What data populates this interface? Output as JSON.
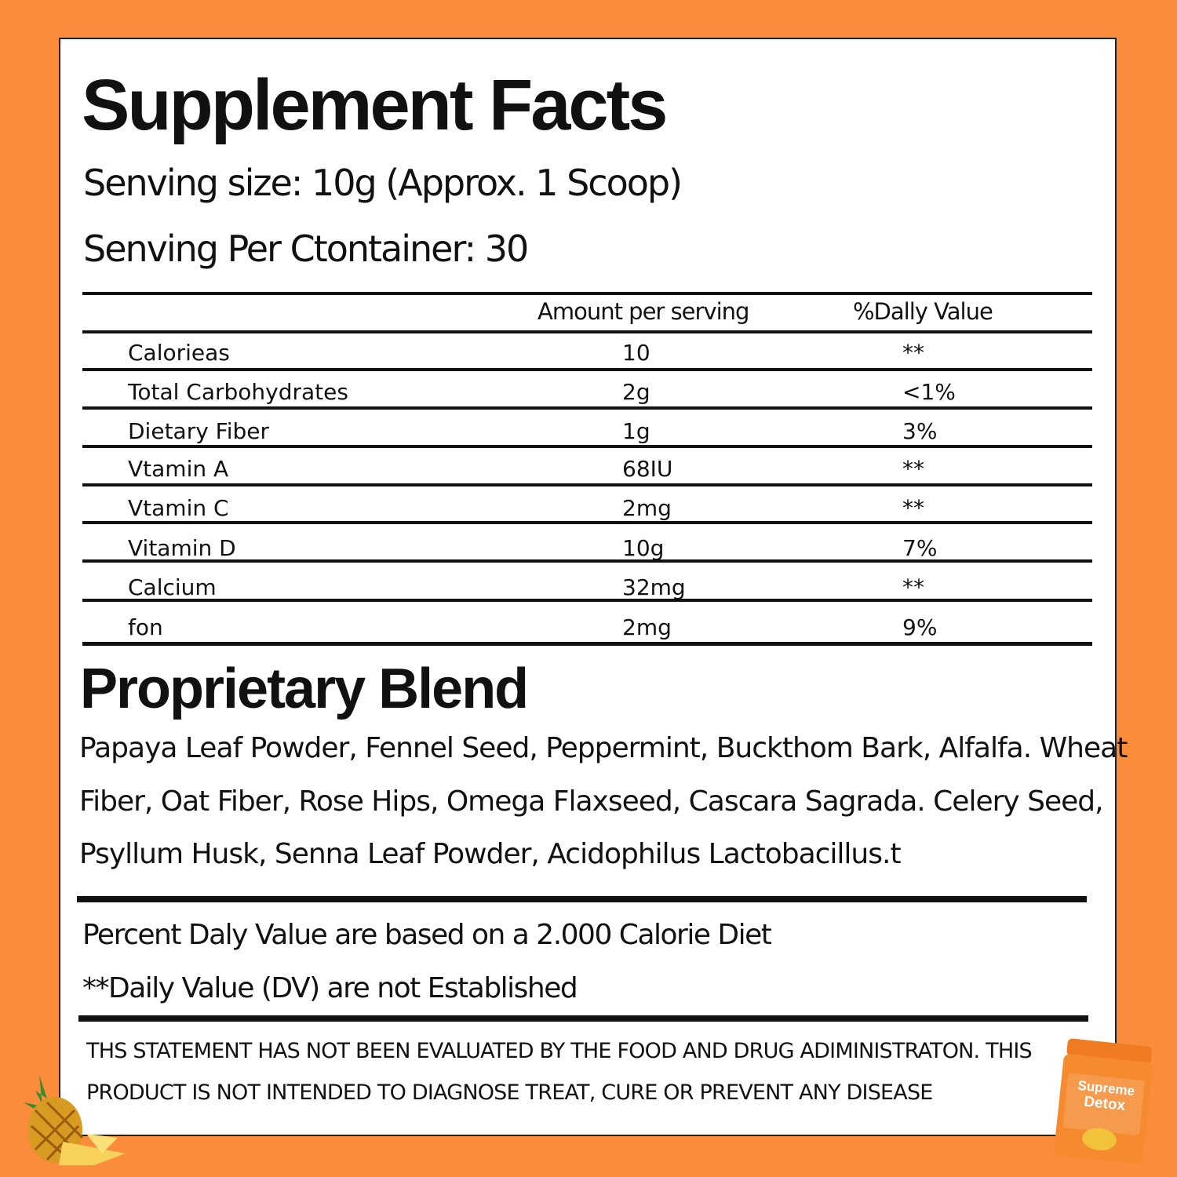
{
  "header": {
    "title": "Supplement Facts",
    "serving_size": "Senving size: 10g (Approx. 1 Scoop)",
    "servings_per_container": "Senving Per Ctontainer: 30"
  },
  "table": {
    "columns": [
      "Amount per serving",
      "%Dally Value"
    ],
    "rows": [
      [
        "Calorieas",
        "10",
        "**"
      ],
      [
        "Total Carbohydrates",
        "2g",
        "<1%"
      ],
      [
        "Dietary Fiber",
        "1g",
        "3%"
      ],
      [
        "Vtamin A",
        "68IU",
        "**"
      ],
      [
        "Vtamin C",
        "2mg",
        "**"
      ],
      [
        "Vitamin D",
        "10g",
        "7%"
      ],
      [
        "Calcium",
        "32mg",
        "**"
      ],
      [
        "fon",
        "2mg",
        "9%"
      ]
    ]
  },
  "blend": {
    "title": "Proprietary Blend",
    "lines": [
      "Papaya Leaf Powder, Fennel Seed, Peppermint, Buckthom Bark, Alfalfa. Wheat",
      "Fiber, Oat Fiber, Rose Hips, Omega Flaxseed, Cascara Sagrada. Celery Seed,",
      "Psyllum Husk, Senna Leaf Powder, Acidophilus Lactobacillus.t"
    ]
  },
  "notes": [
    "Percent Daly Value are based on a 2.000 Calorie Diet",
    "**Daily Value (DV) are not Established"
  ],
  "disclaimer": [
    "THS STATEMENT HAS NOT BEEN EVALUATED BY THE FOOD AND DRUG ADIMINISTRATON. THIS",
    "PRODUCT IS NOT INTENDED TO DIAGNOSE TREAT, CURE OR PREVENT ANY DISEASE"
  ],
  "product": {
    "label_top": "Supreme",
    "label_bottom": "Detox"
  }
}
